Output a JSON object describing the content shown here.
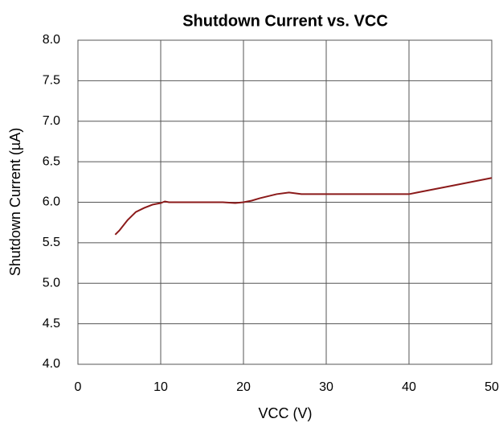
{
  "chart_data": {
    "type": "line",
    "title": "Shutdown Current vs. VCC",
    "xlabel": "VCC (V)",
    "ylabel": "Shutdown Current (µA)",
    "x": [
      4.5,
      5,
      6,
      7,
      8,
      9,
      10,
      10.5,
      11,
      15,
      17.5,
      19,
      20,
      21,
      22,
      24,
      25.5,
      27,
      30,
      35,
      40,
      41,
      45,
      50
    ],
    "series": [
      {
        "name": "Shutdown Current",
        "color": "#8b1a1a",
        "values": [
          5.6,
          5.65,
          5.78,
          5.88,
          5.93,
          5.97,
          5.99,
          6.01,
          6.0,
          6.0,
          6.0,
          5.99,
          6.0,
          6.02,
          6.05,
          6.1,
          6.12,
          6.1,
          6.1,
          6.1,
          6.1,
          6.12,
          6.2,
          6.3
        ]
      }
    ],
    "xlim": [
      0,
      50
    ],
    "xticks": [
      0,
      10,
      20,
      30,
      40,
      50
    ],
    "ylim": [
      4,
      8
    ],
    "yticks": [
      {
        "value": 4,
        "label": "4.0"
      },
      4.5,
      {
        "value": 5,
        "label": "5.0"
      },
      5.5,
      {
        "value": 6,
        "label": "6.0"
      },
      6.5,
      {
        "value": 7,
        "label": "7.0"
      },
      7.5,
      {
        "value": 8,
        "label": "8.0"
      }
    ],
    "grid": true
  }
}
